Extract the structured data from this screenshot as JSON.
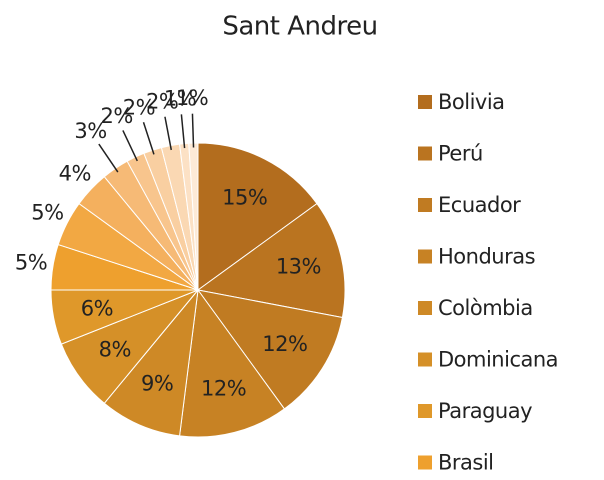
{
  "chart_data": {
    "type": "pie",
    "title": "Sant Andreu",
    "categories": [
      "Bolivia",
      "Perú",
      "Ecuador",
      "Honduras",
      "Colòmbia",
      "Dominicana",
      "Paraguay",
      "Brasil",
      null,
      null,
      null,
      null,
      null,
      null,
      null,
      null
    ],
    "values": [
      15,
      13,
      12,
      12,
      9,
      8,
      6,
      5,
      5,
      4,
      3,
      2,
      2,
      2,
      1,
      1
    ],
    "value_labels": [
      "15%",
      "13%",
      "12%",
      "12%",
      "9%",
      "8%",
      "6%",
      "5%",
      "5%",
      "4%",
      "3%",
      "2%",
      "2%",
      "2%",
      "1%",
      "1%"
    ],
    "colors": [
      "#b36d1e",
      "#ba7420",
      "#c07b22",
      "#c78224",
      "#ce8926",
      "#d59028",
      "#df982a",
      "#eea02e",
      "#f2a843",
      "#f4b05e",
      "#f6ba76",
      "#f8c58d",
      "#f9cfa1",
      "#fad8b3",
      "#fce1c5",
      "#fdead7"
    ],
    "legend": "right"
  }
}
